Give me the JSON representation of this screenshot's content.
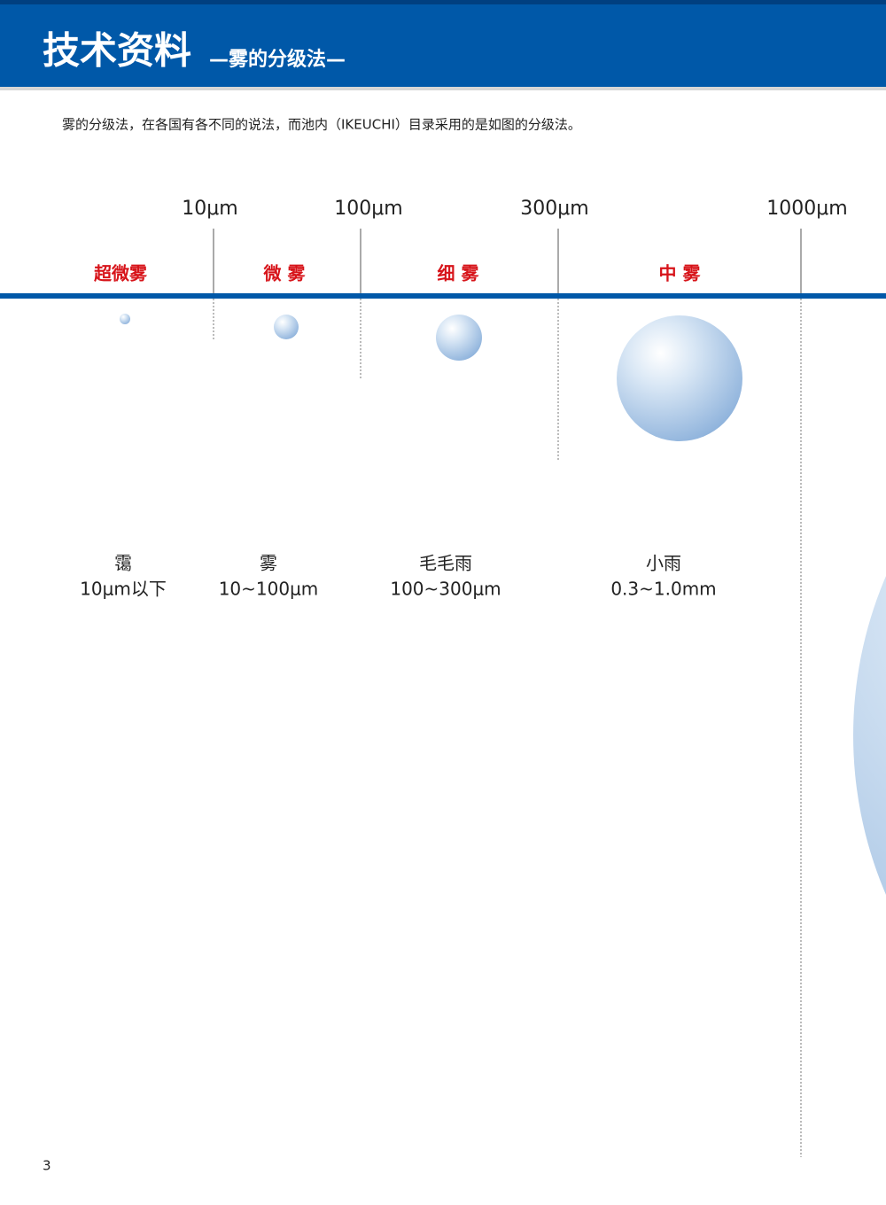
{
  "header": {
    "title": "技术资料",
    "subtitle": "—雾的分级法—"
  },
  "intro": "雾的分级法，在各国有各不同的说法，而池内（IKEUCHI）目录采用的是如图的分级法。",
  "scale": {
    "ticks": [
      "10μm",
      "100μm",
      "300μm",
      "1000μm"
    ]
  },
  "classes": [
    {
      "name": "超微雾",
      "droplet": "霭",
      "range": "10μm以下"
    },
    {
      "name": "微 雾",
      "droplet": "雾",
      "range": "10~100μm"
    },
    {
      "name": "细 雾",
      "droplet": "毛毛雨",
      "range": "100~300μm"
    },
    {
      "name": "中 雾",
      "droplet": "小雨",
      "range": "0.3~1.0mm"
    }
  ],
  "page_number": "3"
}
